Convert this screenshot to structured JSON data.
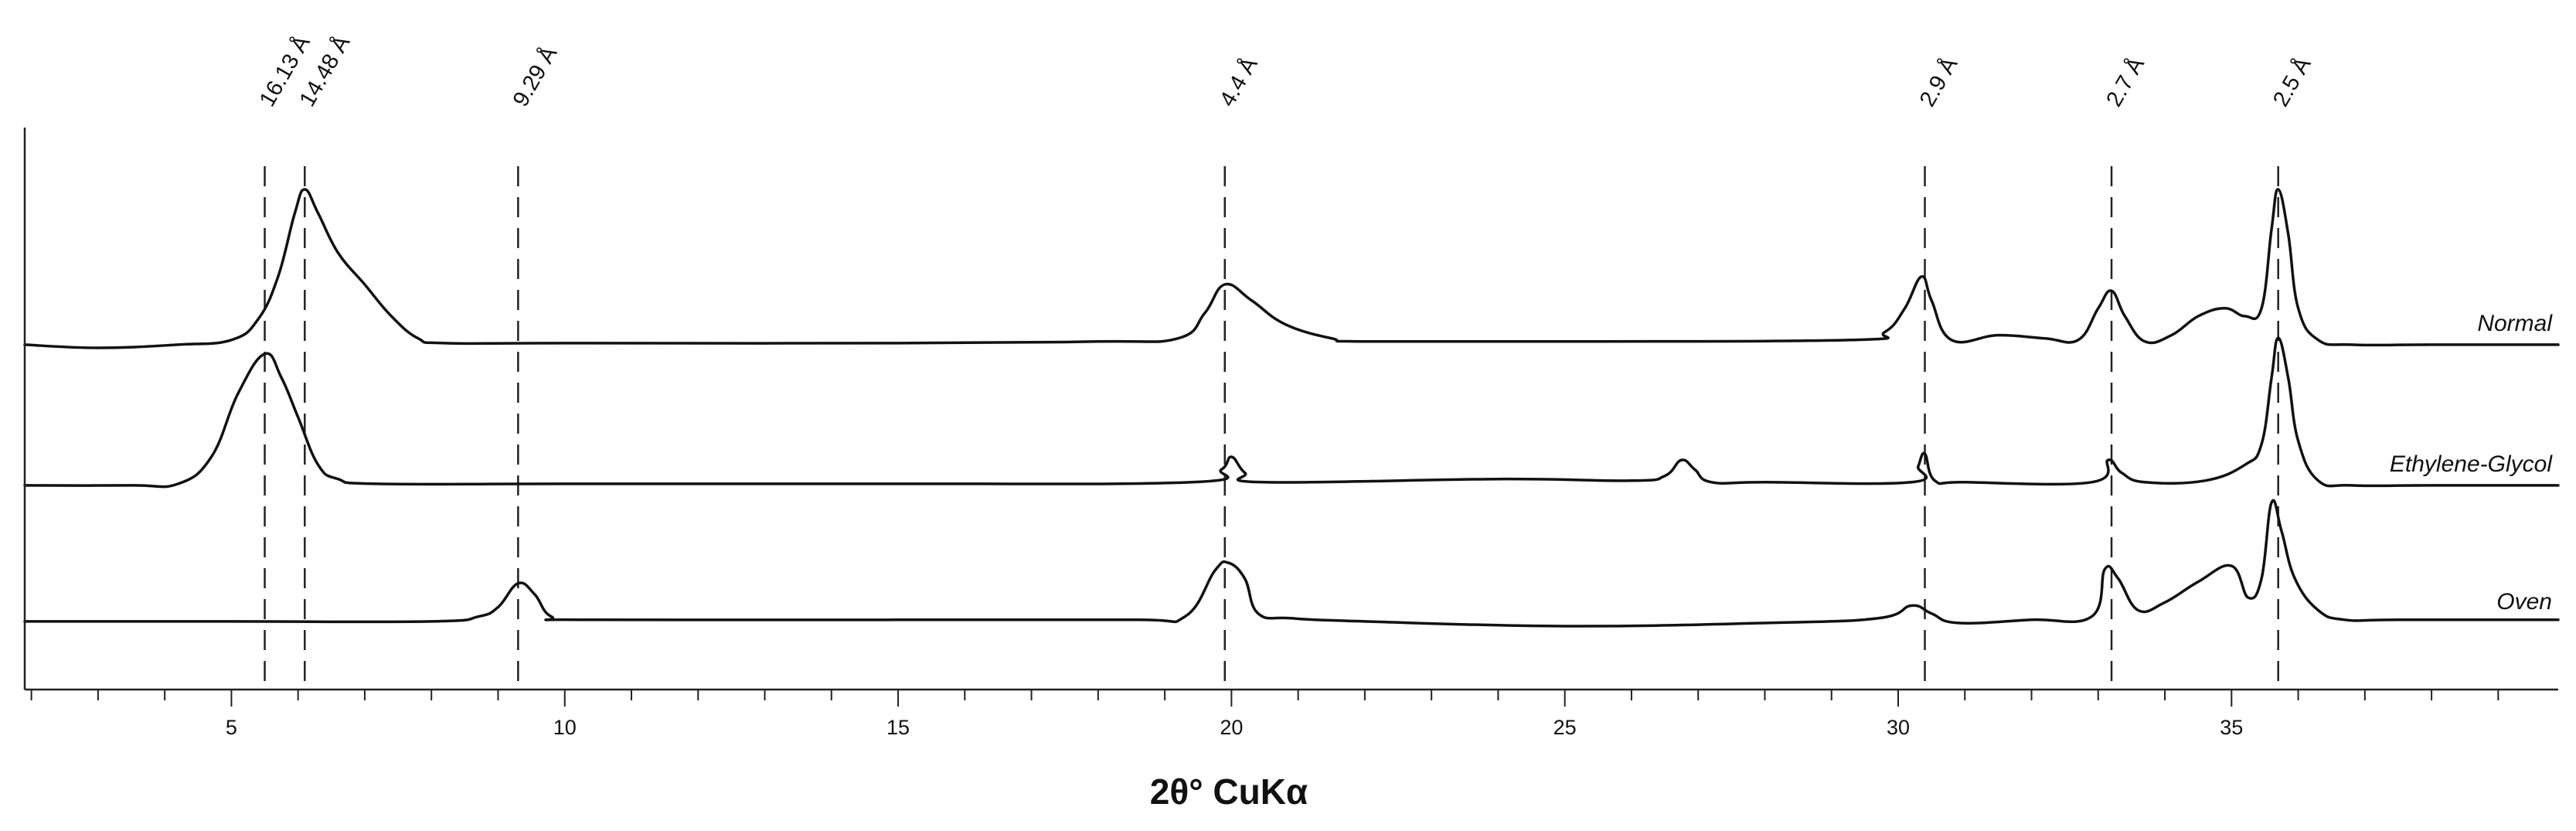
{
  "chart_data": {
    "type": "line",
    "xlabel": "2θ° CuKα",
    "ylabel": "",
    "xlim": [
      1.9,
      39.9
    ],
    "x_ticks": [
      5,
      10,
      15,
      20,
      25,
      30,
      35
    ],
    "x_minor_step": 1,
    "grid": false,
    "legend": "series names labeled at right end of each trace",
    "reference_lines": [
      {
        "x": 5.5,
        "label": "16.13 Å"
      },
      {
        "x": 6.1,
        "label": "14.48 Å"
      },
      {
        "x": 9.3,
        "label": "9.29 Å"
      },
      {
        "x": 19.9,
        "label": "4.4 Å"
      },
      {
        "x": 30.4,
        "label": "2.9 Å"
      },
      {
        "x": 33.2,
        "label": "2.7 Å"
      },
      {
        "x": 35.7,
        "label": "2.5 Å"
      }
    ],
    "series": [
      {
        "name": "Normal",
        "baseline_offset": 2,
        "points": [
          [
            1.9,
            0.02
          ],
          [
            3.0,
            0.0
          ],
          [
            4.2,
            0.02
          ],
          [
            5.0,
            0.05
          ],
          [
            5.4,
            0.18
          ],
          [
            5.7,
            0.45
          ],
          [
            5.95,
            0.85
          ],
          [
            6.1,
            1.0
          ],
          [
            6.3,
            0.85
          ],
          [
            6.6,
            0.6
          ],
          [
            7.0,
            0.4
          ],
          [
            7.4,
            0.2
          ],
          [
            7.8,
            0.06
          ],
          [
            8.2,
            0.03
          ],
          [
            10,
            0.03
          ],
          [
            15,
            0.03
          ],
          [
            18,
            0.04
          ],
          [
            19.2,
            0.06
          ],
          [
            19.6,
            0.22
          ],
          [
            19.9,
            0.4
          ],
          [
            20.3,
            0.3
          ],
          [
            20.8,
            0.15
          ],
          [
            21.5,
            0.06
          ],
          [
            22,
            0.04
          ],
          [
            25,
            0.04
          ],
          [
            29.3,
            0.05
          ],
          [
            29.8,
            0.1
          ],
          [
            30.1,
            0.25
          ],
          [
            30.35,
            0.45
          ],
          [
            30.5,
            0.3
          ],
          [
            30.8,
            0.05
          ],
          [
            31.5,
            0.08
          ],
          [
            32.2,
            0.06
          ],
          [
            32.7,
            0.05
          ],
          [
            33.0,
            0.25
          ],
          [
            33.2,
            0.36
          ],
          [
            33.4,
            0.2
          ],
          [
            33.7,
            0.04
          ],
          [
            34.1,
            0.08
          ],
          [
            34.5,
            0.2
          ],
          [
            34.9,
            0.25
          ],
          [
            35.2,
            0.2
          ],
          [
            35.45,
            0.25
          ],
          [
            35.6,
            0.75
          ],
          [
            35.7,
            1.0
          ],
          [
            35.85,
            0.72
          ],
          [
            36.0,
            0.25
          ],
          [
            36.3,
            0.05
          ],
          [
            36.8,
            0.02
          ],
          [
            38,
            0.02
          ],
          [
            39.9,
            0.02
          ]
        ]
      },
      {
        "name": "Ethylene-Glycol",
        "baseline_offset": 1,
        "points": [
          [
            1.9,
            0.02
          ],
          [
            3.5,
            0.02
          ],
          [
            4.2,
            0.03
          ],
          [
            4.7,
            0.2
          ],
          [
            5.1,
            0.6
          ],
          [
            5.5,
            0.85
          ],
          [
            5.75,
            0.7
          ],
          [
            6.0,
            0.45
          ],
          [
            6.3,
            0.15
          ],
          [
            6.6,
            0.06
          ],
          [
            7.2,
            0.03
          ],
          [
            10,
            0.03
          ],
          [
            15,
            0.03
          ],
          [
            19.4,
            0.04
          ],
          [
            19.85,
            0.12
          ],
          [
            20.0,
            0.2
          ],
          [
            20.2,
            0.1
          ],
          [
            20.5,
            0.04
          ],
          [
            24,
            0.06
          ],
          [
            26.0,
            0.05
          ],
          [
            26.5,
            0.08
          ],
          [
            26.75,
            0.18
          ],
          [
            26.95,
            0.12
          ],
          [
            27.2,
            0.04
          ],
          [
            28,
            0.04
          ],
          [
            30.2,
            0.04
          ],
          [
            30.3,
            0.14
          ],
          [
            30.4,
            0.22
          ],
          [
            30.55,
            0.05
          ],
          [
            31,
            0.04
          ],
          [
            32.9,
            0.04
          ],
          [
            33.15,
            0.18
          ],
          [
            33.35,
            0.1
          ],
          [
            33.7,
            0.04
          ],
          [
            34.6,
            0.05
          ],
          [
            35.2,
            0.15
          ],
          [
            35.45,
            0.28
          ],
          [
            35.6,
            0.7
          ],
          [
            35.7,
            0.95
          ],
          [
            35.85,
            0.7
          ],
          [
            36.0,
            0.3
          ],
          [
            36.3,
            0.05
          ],
          [
            36.8,
            0.02
          ],
          [
            38,
            0.02
          ],
          [
            39.9,
            0.02
          ]
        ]
      },
      {
        "name": "Oven",
        "baseline_offset": 0,
        "points": [
          [
            1.9,
            0.03
          ],
          [
            5,
            0.03
          ],
          [
            8.0,
            0.03
          ],
          [
            8.7,
            0.06
          ],
          [
            9.0,
            0.12
          ],
          [
            9.3,
            0.27
          ],
          [
            9.55,
            0.2
          ],
          [
            9.8,
            0.06
          ],
          [
            10.3,
            0.04
          ],
          [
            15,
            0.04
          ],
          [
            18.5,
            0.04
          ],
          [
            19.3,
            0.06
          ],
          [
            19.75,
            0.35
          ],
          [
            19.95,
            0.4
          ],
          [
            20.2,
            0.3
          ],
          [
            20.4,
            0.08
          ],
          [
            20.9,
            0.05
          ],
          [
            22,
            0.03
          ],
          [
            25,
            0.0
          ],
          [
            28,
            0.02
          ],
          [
            29.7,
            0.05
          ],
          [
            30.2,
            0.13
          ],
          [
            30.5,
            0.08
          ],
          [
            30.9,
            0.02
          ],
          [
            32.0,
            0.04
          ],
          [
            32.9,
            0.06
          ],
          [
            33.1,
            0.36
          ],
          [
            33.3,
            0.3
          ],
          [
            33.6,
            0.1
          ],
          [
            34.0,
            0.15
          ],
          [
            34.5,
            0.28
          ],
          [
            35.0,
            0.38
          ],
          [
            35.25,
            0.18
          ],
          [
            35.45,
            0.3
          ],
          [
            35.6,
            0.78
          ],
          [
            35.75,
            0.6
          ],
          [
            35.95,
            0.3
          ],
          [
            36.3,
            0.1
          ],
          [
            36.7,
            0.04
          ],
          [
            37.5,
            0.04
          ],
          [
            39.9,
            0.04
          ]
        ]
      }
    ]
  }
}
